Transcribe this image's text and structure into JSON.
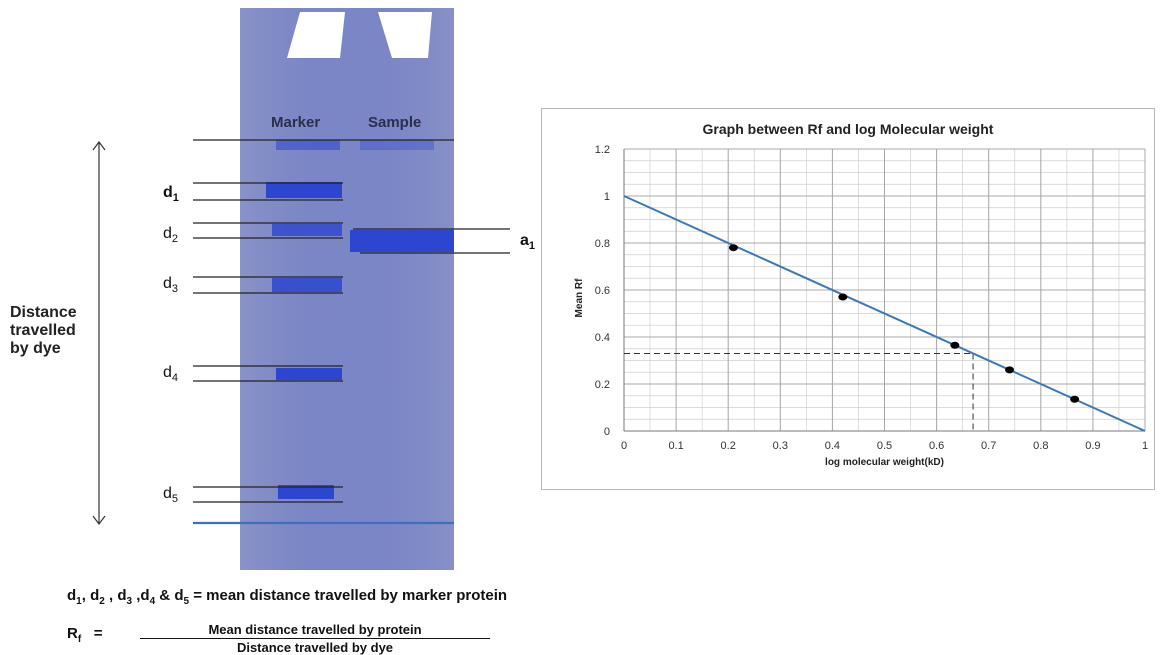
{
  "gel": {
    "marker_label": "Marker",
    "sample_label": "Sample",
    "d_labels": [
      {
        "base": "d",
        "sub": "1"
      },
      {
        "base": "d",
        "sub": "2"
      },
      {
        "base": "d",
        "sub": "3"
      },
      {
        "base": "d",
        "sub": "4"
      },
      {
        "base": "d",
        "sub": "5"
      }
    ],
    "a_label": {
      "base": "a",
      "sub": "1"
    },
    "distance_label": "Distance\ntravelled\nby dye",
    "gel_color": "#7b86c6",
    "band_color": "#2c46cf"
  },
  "chart_data": {
    "type": "scatter",
    "title": "Graph between Rf and log Molecular weight",
    "xlabel": "log molecular weight(kD)",
    "ylabel": "Mean Rf",
    "xlim": [
      0,
      1
    ],
    "ylim": [
      0,
      1.2
    ],
    "x_ticks": [
      "0",
      "0.1",
      "0.2",
      "0.3",
      "0.4",
      "0.5",
      "0.6",
      "0.7",
      "0.8",
      "0.9",
      "1"
    ],
    "y_ticks": [
      "0",
      "0.2",
      "0.4",
      "0.6",
      "0.8",
      "1",
      "1.2"
    ],
    "points": [
      {
        "x": 0.21,
        "y": 0.78
      },
      {
        "x": 0.42,
        "y": 0.57
      },
      {
        "x": 0.635,
        "y": 0.365
      },
      {
        "x": 0.74,
        "y": 0.26
      },
      {
        "x": 0.865,
        "y": 0.135
      }
    ],
    "fit_line": {
      "x": [
        0,
        1
      ],
      "y": [
        1,
        0
      ]
    },
    "reference": {
      "x": 0.67,
      "y": 0.33
    },
    "grid": true,
    "line_color": "#3d79b8",
    "point_color": "#000000"
  },
  "formulas": {
    "legend_parts": [
      {
        "base": "d",
        "sub": "1",
        "sep": ", "
      },
      {
        "base": "d",
        "sub": "2",
        "sep": " , "
      },
      {
        "base": "d",
        "sub": "3",
        "sep": " ,"
      },
      {
        "base": "d",
        "sub": "4",
        "sep": " & "
      },
      {
        "base": "d",
        "sub": "5",
        "sep": ""
      }
    ],
    "legend_text": " = mean distance travelled by marker protein",
    "rf_symbol": "R",
    "rf_sub": "f",
    "equals": "=",
    "numerator": "Mean distance travelled by protein",
    "denominator": "Distance travelled by dye"
  }
}
